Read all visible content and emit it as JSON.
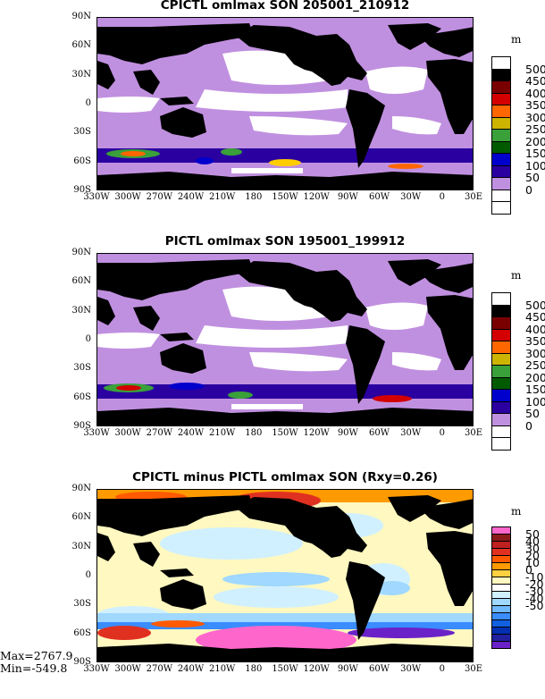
{
  "panels": [
    {
      "title": "CPICTL omlmax SON 205001_210912",
      "units": "m"
    },
    {
      "title": "PICTL omlmax SON 195001_199912",
      "units": "m"
    },
    {
      "title": "CPICTL minus PICTL omlmax SON (Rxy=0.26)",
      "units": "m"
    }
  ],
  "lat_labels": [
    "90N",
    "60N",
    "30N",
    "0",
    "30S",
    "60S",
    "90S"
  ],
  "lon_labels": [
    "330W",
    "300W",
    "270W",
    "240W",
    "210W",
    "180",
    "150W",
    "120W",
    "90W",
    "60W",
    "30W",
    "0",
    "30E"
  ],
  "colorbar_abs": {
    "labels": [
      "500",
      "450",
      "400",
      "350",
      "300",
      "250",
      "200",
      "150",
      "100",
      "50",
      "0"
    ],
    "colors": [
      "#ffffff",
      "#000000",
      "#7a0000",
      "#d40000",
      "#ff6600",
      "#ccb400",
      "#3aa03a",
      "#005a00",
      "#0000cc",
      "#2a00a0",
      "#c090e0",
      "#ffffff",
      "#ffffff"
    ]
  },
  "colorbar_diff": {
    "labels": [
      "50",
      "40",
      "30",
      "20",
      "10",
      "0",
      "-10",
      "-20",
      "-30",
      "-40",
      "-50"
    ],
    "colors": [
      "#ff66cc",
      "#8b1a1a",
      "#c02020",
      "#e03020",
      "#ff5a00",
      "#ff9a00",
      "#ffd040",
      "#fff8c0",
      "#ffffff",
      "#d0f0ff",
      "#a0d8ff",
      "#70b8ff",
      "#3a8cff",
      "#1060e0",
      "#0030b0",
      "#2020a0",
      "#6a22c8"
    ]
  },
  "stats": {
    "max": "Max=2767.9",
    "min": "Min=-549.8"
  }
}
